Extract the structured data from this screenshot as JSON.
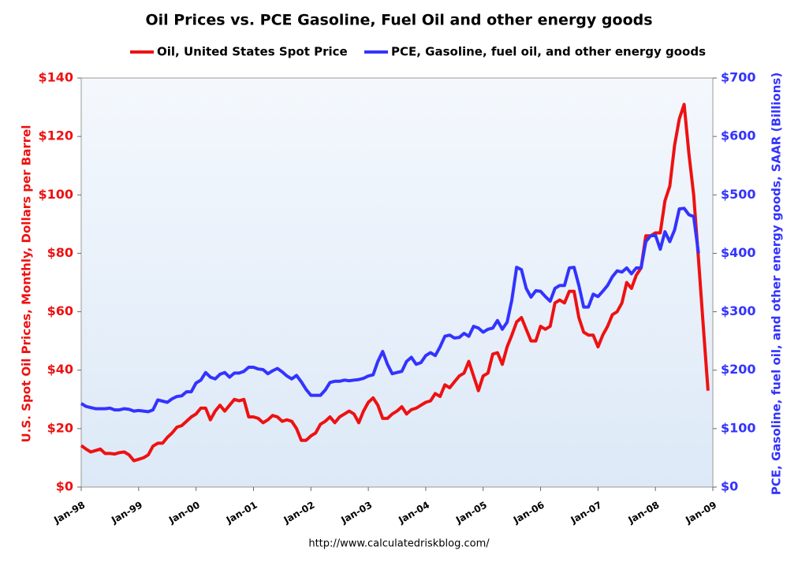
{
  "chart_data": {
    "type": "line",
    "title": "Oil Prices vs. PCE Gasoline, Fuel Oil and other energy goods",
    "source": "http://www.calculatedriskblog.com/",
    "ylabel": "U.S. Spot Oil Prices, Monthly, Dollars per Barrel",
    "y2label": "PCE, Gasoline, fuel oil, and other energy goods, SAAR (Billions)",
    "legend": "top",
    "x": [
      "1998-01",
      "1998-02",
      "1998-03",
      "1998-04",
      "1998-05",
      "1998-06",
      "1998-07",
      "1998-08",
      "1998-09",
      "1998-10",
      "1998-11",
      "1998-12",
      "1999-01",
      "1999-02",
      "1999-03",
      "1999-04",
      "1999-05",
      "1999-06",
      "1999-07",
      "1999-08",
      "1999-09",
      "1999-10",
      "1999-11",
      "1999-12",
      "2000-01",
      "2000-02",
      "2000-03",
      "2000-04",
      "2000-05",
      "2000-06",
      "2000-07",
      "2000-08",
      "2000-09",
      "2000-10",
      "2000-11",
      "2000-12",
      "2001-01",
      "2001-02",
      "2001-03",
      "2001-04",
      "2001-05",
      "2001-06",
      "2001-07",
      "2001-08",
      "2001-09",
      "2001-10",
      "2001-11",
      "2001-12",
      "2002-01",
      "2002-02",
      "2002-03",
      "2002-04",
      "2002-05",
      "2002-06",
      "2002-07",
      "2002-08",
      "2002-09",
      "2002-10",
      "2002-11",
      "2002-12",
      "2003-01",
      "2003-02",
      "2003-03",
      "2003-04",
      "2003-05",
      "2003-06",
      "2003-07",
      "2003-08",
      "2003-09",
      "2003-10",
      "2003-11",
      "2003-12",
      "2004-01",
      "2004-02",
      "2004-03",
      "2004-04",
      "2004-05",
      "2004-06",
      "2004-07",
      "2004-08",
      "2004-09",
      "2004-10",
      "2004-11",
      "2004-12",
      "2005-01",
      "2005-02",
      "2005-03",
      "2005-04",
      "2005-05",
      "2005-06",
      "2005-07",
      "2005-08",
      "2005-09",
      "2005-10",
      "2005-11",
      "2005-12",
      "2006-01",
      "2006-02",
      "2006-03",
      "2006-04",
      "2006-05",
      "2006-06",
      "2006-07",
      "2006-08",
      "2006-09",
      "2006-10",
      "2006-11",
      "2006-12",
      "2007-01",
      "2007-02",
      "2007-03",
      "2007-04",
      "2007-05",
      "2007-06",
      "2007-07",
      "2007-08",
      "2007-09",
      "2007-10",
      "2007-11",
      "2007-12",
      "2008-01",
      "2008-02",
      "2008-03",
      "2008-04",
      "2008-05",
      "2008-06",
      "2008-07",
      "2008-08",
      "2008-09",
      "2008-10",
      "2008-11",
      "2008-12"
    ],
    "xlim": [
      "1998-01",
      "2009-01"
    ],
    "xticks": [
      {
        "value": "1998-01",
        "label": "Jan-98"
      },
      {
        "value": "1999-01",
        "label": "Jan-99"
      },
      {
        "value": "2000-01",
        "label": "Jan-00"
      },
      {
        "value": "2001-01",
        "label": "Jan-01"
      },
      {
        "value": "2002-01",
        "label": "Jan-02"
      },
      {
        "value": "2003-01",
        "label": "Jan-03"
      },
      {
        "value": "2004-01",
        "label": "Jan-04"
      },
      {
        "value": "2005-01",
        "label": "Jan-05"
      },
      {
        "value": "2006-01",
        "label": "Jan-06"
      },
      {
        "value": "2007-01",
        "label": "Jan-07"
      },
      {
        "value": "2008-01",
        "label": "Jan-08"
      },
      {
        "value": "2009-01",
        "label": "Jan-09"
      }
    ],
    "ylim": [
      0,
      140
    ],
    "yticks": [
      {
        "value": 0,
        "label": "$0"
      },
      {
        "value": 20,
        "label": "$20"
      },
      {
        "value": 40,
        "label": "$40"
      },
      {
        "value": 60,
        "label": "$60"
      },
      {
        "value": 80,
        "label": "$80"
      },
      {
        "value": 100,
        "label": "$100"
      },
      {
        "value": 120,
        "label": "$120"
      },
      {
        "value": 140,
        "label": "$140"
      }
    ],
    "y2lim": [
      0,
      700
    ],
    "y2ticks": [
      {
        "value": 0,
        "label": "$0"
      },
      {
        "value": 100,
        "label": "$100"
      },
      {
        "value": 200,
        "label": "$200"
      },
      {
        "value": 300,
        "label": "$300"
      },
      {
        "value": 400,
        "label": "$400"
      },
      {
        "value": 500,
        "label": "$500"
      },
      {
        "value": 600,
        "label": "$600"
      },
      {
        "value": 700,
        "label": "$700"
      }
    ],
    "series": [
      {
        "name": "Oil, United States Spot Price",
        "color": "#ee1111",
        "values": [
          14.2,
          13,
          12,
          12.5,
          13,
          11.5,
          11.5,
          11.3,
          11.8,
          12,
          11,
          9,
          9.5,
          10,
          11,
          14,
          15,
          15,
          17,
          18.5,
          20.5,
          21,
          22.5,
          24,
          25,
          27,
          27,
          23,
          26,
          28,
          26,
          28,
          30,
          29.5,
          30,
          24,
          24,
          23.5,
          22,
          23,
          24.5,
          24,
          22.5,
          23,
          22.5,
          20,
          16,
          16,
          17.5,
          18.5,
          21.5,
          22.5,
          24,
          22,
          24,
          25,
          26,
          25,
          22,
          26,
          29,
          30.5,
          28,
          23.5,
          23.5,
          25,
          26,
          27.5,
          25,
          26.5,
          27,
          28,
          29,
          29.5,
          32,
          31,
          35,
          34,
          36,
          38,
          39,
          43,
          38,
          33,
          38,
          39,
          45.5,
          46,
          42,
          48,
          52,
          56.5,
          58,
          54,
          50,
          50,
          55,
          54,
          55,
          63,
          64,
          63,
          67,
          67,
          58,
          53,
          52,
          52,
          48,
          52,
          55,
          59,
          60,
          63,
          70,
          68,
          72.5,
          75,
          86,
          86,
          87,
          87,
          98,
          103,
          117,
          126,
          131,
          114,
          100,
          78,
          55,
          33
        ]
      },
      {
        "name": "PCE, Gasoline, fuel oil, and other energy goods",
        "color": "#3333ff",
        "axis": "y2",
        "values": [
          143,
          138,
          136,
          134,
          134,
          134,
          135,
          132,
          132,
          134,
          133,
          130,
          131,
          130,
          129,
          132,
          149,
          147,
          145,
          151,
          155,
          156,
          163,
          163,
          178,
          183,
          196,
          188,
          185,
          193,
          196,
          188,
          195,
          195,
          198,
          205,
          205,
          202,
          201,
          194,
          199,
          203,
          197,
          190,
          185,
          191,
          180,
          167,
          157,
          157,
          157,
          166,
          179,
          181,
          181,
          183,
          182,
          183,
          184,
          186,
          190,
          192,
          215,
          232,
          210,
          194,
          196,
          198,
          215,
          222,
          210,
          213,
          225,
          230,
          225,
          240,
          258,
          260,
          255,
          256,
          263,
          258,
          275,
          272,
          265,
          270,
          272,
          285,
          270,
          282,
          320,
          376,
          372,
          340,
          325,
          336,
          335,
          326,
          318,
          340,
          345,
          345,
          375,
          376,
          345,
          308,
          308,
          330,
          326,
          335,
          345,
          360,
          370,
          368,
          375,
          365,
          375,
          375,
          420,
          430,
          431,
          407,
          437,
          420,
          440,
          476,
          477,
          466,
          463,
          400,
          null,
          null
        ]
      }
    ]
  }
}
